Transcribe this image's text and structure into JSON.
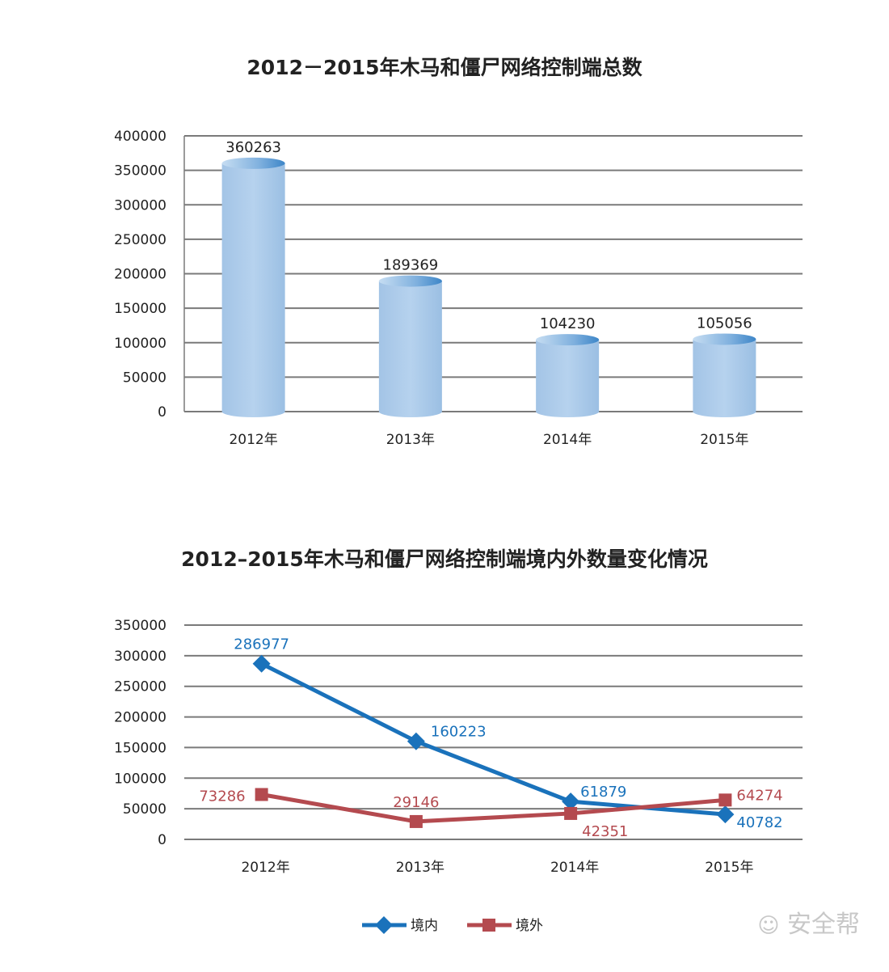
{
  "chart_data": [
    {
      "type": "bar",
      "title": "2012－2015年木马和僵尸网络控制端总数",
      "categories": [
        "2012年",
        "2013年",
        "2014年",
        "2015年"
      ],
      "values": [
        360263,
        189369,
        104230,
        105056
      ],
      "yticks": [
        "0",
        "50000",
        "100000",
        "150000",
        "200000",
        "250000",
        "300000",
        "350000",
        "400000"
      ],
      "ylim": [
        0,
        400000
      ],
      "grid": true,
      "bar_style": "cylinder",
      "color": "#a9c8e8"
    },
    {
      "type": "line",
      "title": "2012–2015年木马和僵尸网络控制端境内外数量变化情况",
      "categories": [
        "2012年",
        "2013年",
        "2014年",
        "2015年"
      ],
      "yticks": [
        "0",
        "50000",
        "100000",
        "150000",
        "200000",
        "250000",
        "300000",
        "350000"
      ],
      "ylim": [
        0,
        350000
      ],
      "grid": true,
      "legend_position": "bottom",
      "series": [
        {
          "name": "境内",
          "values": [
            286977,
            160223,
            61879,
            40782
          ],
          "color": "#1a72bb",
          "marker": "diamond"
        },
        {
          "name": "境外",
          "values": [
            73286,
            29146,
            42351,
            64274
          ],
          "color": "#b44a4f",
          "marker": "square"
        }
      ]
    }
  ],
  "watermark": "安全帮"
}
